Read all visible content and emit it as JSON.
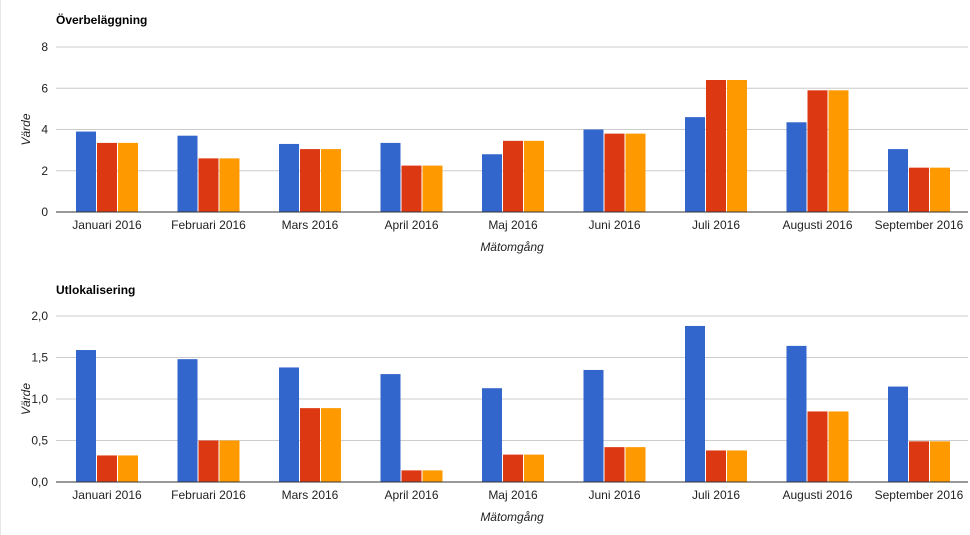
{
  "colors": {
    "series1": "#3366cc",
    "series2": "#dc3912",
    "series3": "#ff9900",
    "grid": "#cccccc",
    "axis": "#333333"
  },
  "chart_data": [
    {
      "type": "bar",
      "title": "Överbeläggning",
      "xlabel": "Mätomgång",
      "ylabel": "Värde",
      "ylim": [
        0,
        8
      ],
      "y_ticks": [
        "0",
        "2",
        "4",
        "6",
        "8"
      ],
      "grid": true,
      "categories": [
        "Januari 2016",
        "Februari 2016",
        "Mars 2016",
        "April 2016",
        "Maj 2016",
        "Juni 2016",
        "Juli 2016",
        "Augusti 2016",
        "September 2016"
      ],
      "series": [
        {
          "values": [
            3.9,
            3.7,
            3.3,
            3.35,
            2.8,
            4.0,
            4.6,
            4.35,
            3.05
          ]
        },
        {
          "values": [
            3.35,
            2.6,
            3.05,
            2.25,
            3.45,
            3.8,
            6.4,
            5.9,
            2.15
          ]
        },
        {
          "values": [
            3.35,
            2.6,
            3.05,
            2.25,
            3.45,
            3.8,
            6.4,
            5.9,
            2.15
          ]
        }
      ]
    },
    {
      "type": "bar",
      "title": "Utlokalisering",
      "xlabel": "Mätomgång",
      "ylabel": "Värde",
      "ylim": [
        0,
        2
      ],
      "y_ticks": [
        "0,0",
        "0,5",
        "1,0",
        "1,5",
        "2,0"
      ],
      "grid": true,
      "categories": [
        "Januari 2016",
        "Februari 2016",
        "Mars 2016",
        "April 2016",
        "Maj 2016",
        "Juni 2016",
        "Juli 2016",
        "Augusti 2016",
        "September 2016"
      ],
      "series": [
        {
          "values": [
            1.59,
            1.48,
            1.38,
            1.3,
            1.13,
            1.35,
            1.88,
            1.64,
            1.15
          ]
        },
        {
          "values": [
            0.32,
            0.5,
            0.89,
            0.14,
            0.33,
            0.42,
            0.38,
            0.85,
            0.49
          ]
        },
        {
          "values": [
            0.32,
            0.5,
            0.89,
            0.14,
            0.33,
            0.42,
            0.38,
            0.85,
            0.49
          ]
        }
      ]
    }
  ]
}
